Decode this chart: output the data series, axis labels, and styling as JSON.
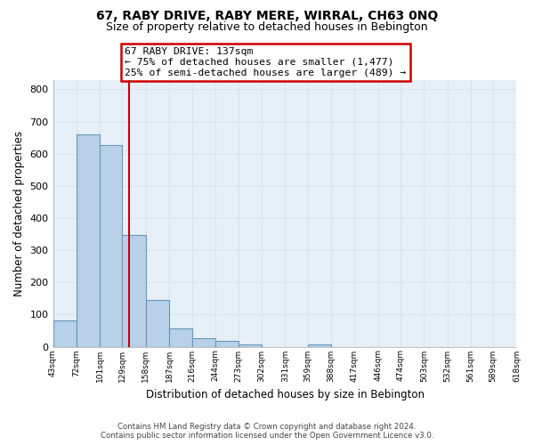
{
  "title": "67, RABY DRIVE, RABY MERE, WIRRAL, CH63 0NQ",
  "subtitle": "Size of property relative to detached houses in Bebington",
  "xlabel": "Distribution of detached houses by size in Bebington",
  "ylabel": "Number of detached properties",
  "bar_edges": [
    43,
    72,
    101,
    129,
    158,
    187,
    216,
    244,
    273,
    302,
    331,
    359,
    388,
    417,
    446,
    474,
    503,
    532,
    561,
    589,
    618
  ],
  "bar_heights": [
    83,
    661,
    627,
    348,
    146,
    57,
    27,
    18,
    8,
    0,
    0,
    7,
    0,
    0,
    0,
    0,
    0,
    0,
    0,
    0
  ],
  "bar_color": "#b8d0e8",
  "bar_edge_color": "#6699bb",
  "vline_x": 137,
  "vline_color": "#cc0000",
  "ylim": [
    0,
    830
  ],
  "yticks": [
    0,
    100,
    200,
    300,
    400,
    500,
    600,
    700,
    800
  ],
  "annotation_line1": "67 RABY DRIVE: 137sqm",
  "annotation_line2": "← 75% of detached houses are smaller (1,477)",
  "annotation_line3": "25% of semi-detached houses are larger (489) →",
  "grid_color": "#d8e4ed",
  "footer_line1": "Contains HM Land Registry data © Crown copyright and database right 2024.",
  "footer_line2": "Contains public sector information licensed under the Open Government Licence v3.0.",
  "tick_labels": [
    "43sqm",
    "72sqm",
    "101sqm",
    "129sqm",
    "158sqm",
    "187sqm",
    "216sqm",
    "244sqm",
    "273sqm",
    "302sqm",
    "331sqm",
    "359sqm",
    "388sqm",
    "417sqm",
    "446sqm",
    "474sqm",
    "503sqm",
    "532sqm",
    "561sqm",
    "589sqm",
    "618sqm"
  ],
  "ax_facecolor": "#e8f0f7",
  "title_fontsize": 10,
  "subtitle_fontsize": 9
}
